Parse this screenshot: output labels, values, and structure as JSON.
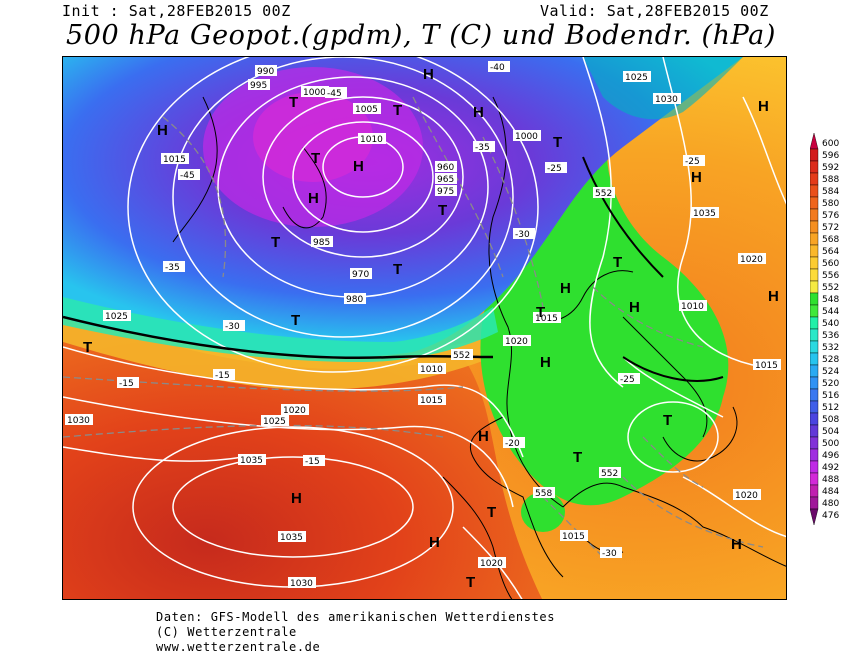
{
  "header": {
    "init": "Init : Sat,28FEB2015 00Z",
    "valid": "Valid: Sat,28FEB2015 00Z",
    "title": "500 hPa Geopot.(gpdm), T (C) und Bodendr. (hPa)"
  },
  "colorbar": {
    "levels": [
      "600",
      "596",
      "592",
      "588",
      "584",
      "580",
      "576",
      "572",
      "568",
      "564",
      "560",
      "556",
      "552",
      "548",
      "544",
      "540",
      "536",
      "532",
      "528",
      "524",
      "520",
      "516",
      "512",
      "508",
      "504",
      "500",
      "496",
      "492",
      "488",
      "484",
      "480",
      "476"
    ],
    "colors": [
      "#c7003f",
      "#d21a1a",
      "#dc2b1b",
      "#e43b1a",
      "#ea501b",
      "#ef651d",
      "#f27a1e",
      "#f58f20",
      "#f8a424",
      "#fab82a",
      "#fccc31",
      "#fcdb3a",
      "#f5ea42",
      "#2fe02f",
      "#40e83a",
      "#22f0a8",
      "#2ae8c8",
      "#2bd9e0",
      "#27c4ee",
      "#2aaaf2",
      "#3092f4",
      "#3a78f0",
      "#3f5ee8",
      "#4a44e0",
      "#6238d8",
      "#8232d8",
      "#a02ee0",
      "#bf2ae6",
      "#d22ad8",
      "#c020b0",
      "#a0189a",
      "#6a0a6a"
    ]
  },
  "map": {
    "pressure_labels": [
      "990",
      "995",
      "1000",
      "1005",
      "1010",
      "1015",
      "1020",
      "1025",
      "1030",
      "1035",
      "985",
      "980",
      "975",
      "970",
      "965",
      "960"
    ],
    "temperature_labels": [
      "-15",
      "-20",
      "-25",
      "-30",
      "-35",
      "-40",
      "-45"
    ],
    "geopot_labels": [
      "552",
      "558"
    ],
    "symbols": {
      "high": "H",
      "low": "T"
    }
  },
  "footer": {
    "line1": "Daten: GFS-Modell des amerikanischen Wetterdienstes",
    "line2": "(C) Wetterzentrale",
    "line3": "www.wetterzentrale.de"
  }
}
